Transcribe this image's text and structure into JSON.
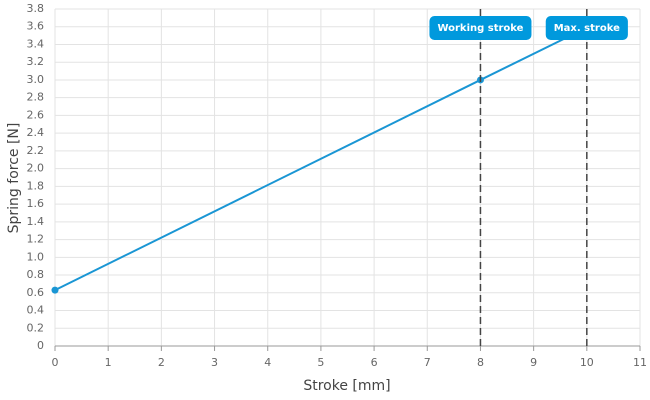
{
  "chart_data": {
    "type": "line",
    "xlabel": "Stroke [mm]",
    "ylabel": "Spring force [N]",
    "x": [
      0,
      8,
      10
    ],
    "series": [
      {
        "name": "Spring force",
        "color": "#1a96d4",
        "values": [
          0.63,
          3.0,
          3.59
        ]
      }
    ],
    "xlim": [
      0,
      11
    ],
    "xticks": [
      0,
      1,
      2,
      3,
      4,
      5,
      6,
      7,
      8,
      9,
      10,
      11
    ],
    "ylim": [
      0,
      3.8
    ],
    "yticks": [
      0,
      0.2,
      0.4,
      0.6,
      0.8,
      {
        "value": 1,
        "label": "1.0"
      },
      1.2,
      1.4,
      1.6,
      1.8,
      {
        "value": 2,
        "label": "2.0"
      },
      2.2,
      2.4,
      2.6,
      2.8,
      {
        "value": 3,
        "label": "3.0"
      },
      3.2,
      3.4,
      3.6,
      3.8
    ],
    "grid": true,
    "annotations": [
      {
        "x": 8,
        "label": "Working stroke"
      },
      {
        "x": 10,
        "label": "Max. stroke"
      }
    ],
    "annotation_color": "#0099dd"
  }
}
